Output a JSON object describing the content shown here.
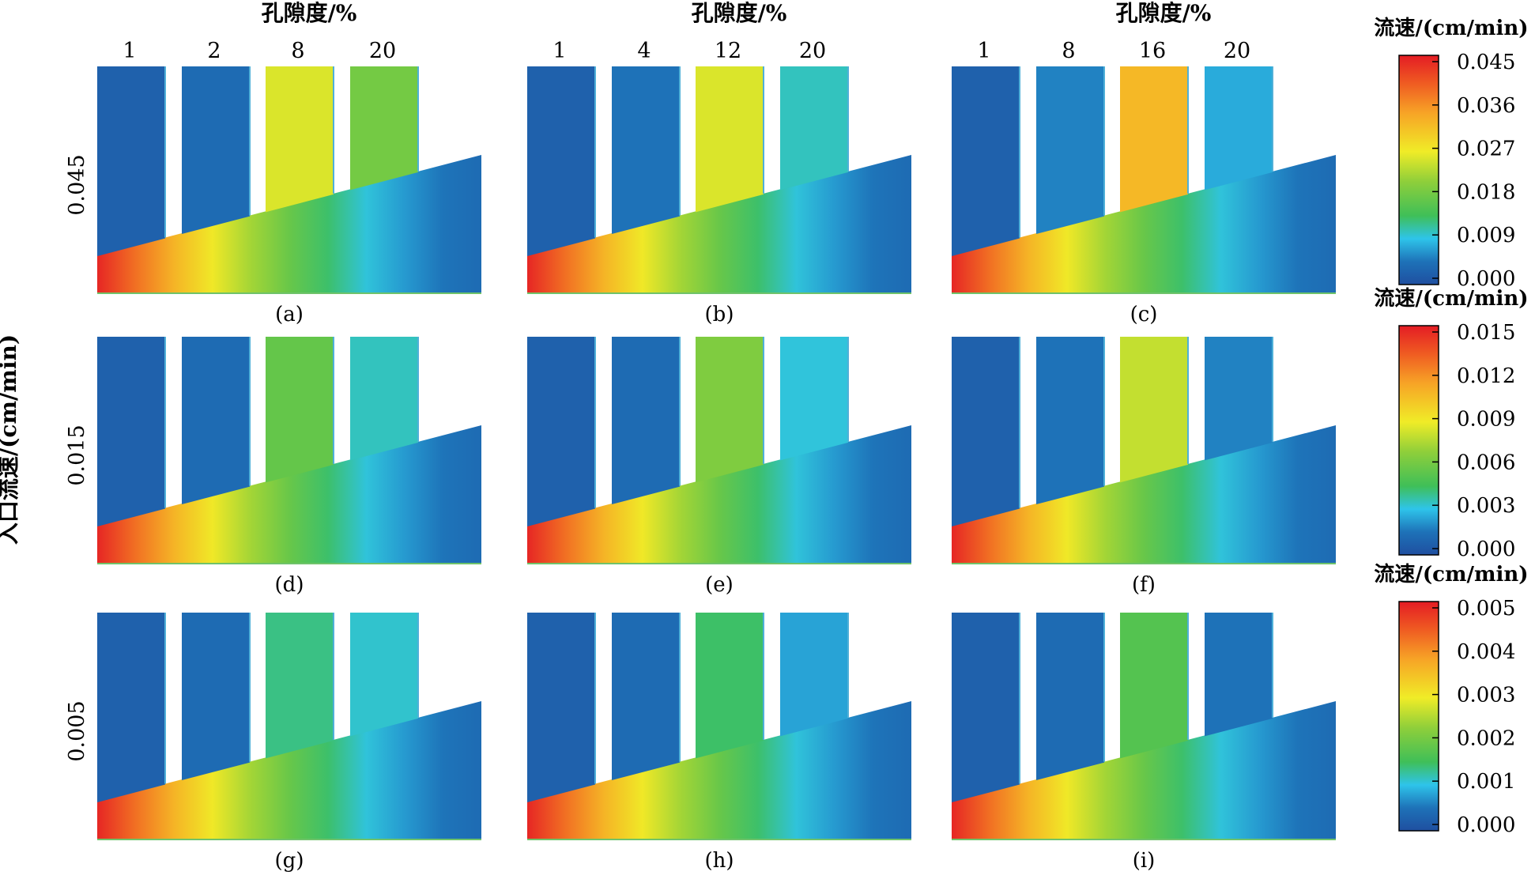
{
  "x_title": "孔隙度/%",
  "y_title": "入口流速/(cm/min)",
  "columns": [
    {
      "porosities": [
        "1",
        "2",
        "8",
        "20"
      ]
    },
    {
      "porosities": [
        "1",
        "4",
        "12",
        "20"
      ]
    },
    {
      "porosities": [
        "1",
        "8",
        "16",
        "20"
      ]
    }
  ],
  "rows": [
    {
      "inlet_velocity": "0.045",
      "colorbar": {
        "title": "流速/(cm/min)",
        "ticks": [
          "0.045",
          "0.036",
          "0.027",
          "0.018",
          "0.009",
          "0.000"
        ]
      },
      "panels": [
        {
          "label": "(a)",
          "branch_levels": [
            0.05,
            0.08,
            0.55,
            0.4
          ],
          "inlet_level": 0.98,
          "corner_level": 0.08
        },
        {
          "label": "(b)",
          "branch_levels": [
            0.05,
            0.1,
            0.55,
            0.23
          ],
          "inlet_level": 0.98,
          "corner_level": 0.08
        },
        {
          "label": "(c)",
          "branch_levels": [
            0.05,
            0.12,
            0.7,
            0.17
          ],
          "inlet_level": 0.98,
          "corner_level": 0.08
        }
      ]
    },
    {
      "inlet_velocity": "0.015",
      "colorbar": {
        "title": "流速/(cm/min)",
        "ticks": [
          "0.015",
          "0.012",
          "0.009",
          "0.006",
          "0.003",
          "0.000"
        ]
      },
      "panels": [
        {
          "label": "(d)",
          "branch_levels": [
            0.05,
            0.08,
            0.37,
            0.23
          ],
          "inlet_level": 0.98,
          "corner_level": 0.08
        },
        {
          "label": "(e)",
          "branch_levels": [
            0.05,
            0.08,
            0.42,
            0.21
          ],
          "inlet_level": 0.98,
          "corner_level": 0.08
        },
        {
          "label": "(f)",
          "branch_levels": [
            0.05,
            0.1,
            0.52,
            0.12
          ],
          "inlet_level": 0.98,
          "corner_level": 0.08
        }
      ]
    },
    {
      "inlet_velocity": "0.005",
      "colorbar": {
        "title": "流速/(cm/min)",
        "ticks": [
          "0.005",
          "0.004",
          "0.003",
          "0.002",
          "0.001",
          "0.000"
        ]
      },
      "panels": [
        {
          "label": "(g)",
          "branch_levels": [
            0.05,
            0.08,
            0.27,
            0.22
          ],
          "inlet_level": 0.98,
          "corner_level": 0.08
        },
        {
          "label": "(h)",
          "branch_levels": [
            0.05,
            0.08,
            0.29,
            0.16
          ],
          "inlet_level": 0.98,
          "corner_level": 0.08
        },
        {
          "label": "(i)",
          "branch_levels": [
            0.05,
            0.08,
            0.34,
            0.1
          ],
          "inlet_level": 0.98,
          "corner_level": 0.08
        }
      ]
    }
  ]
}
